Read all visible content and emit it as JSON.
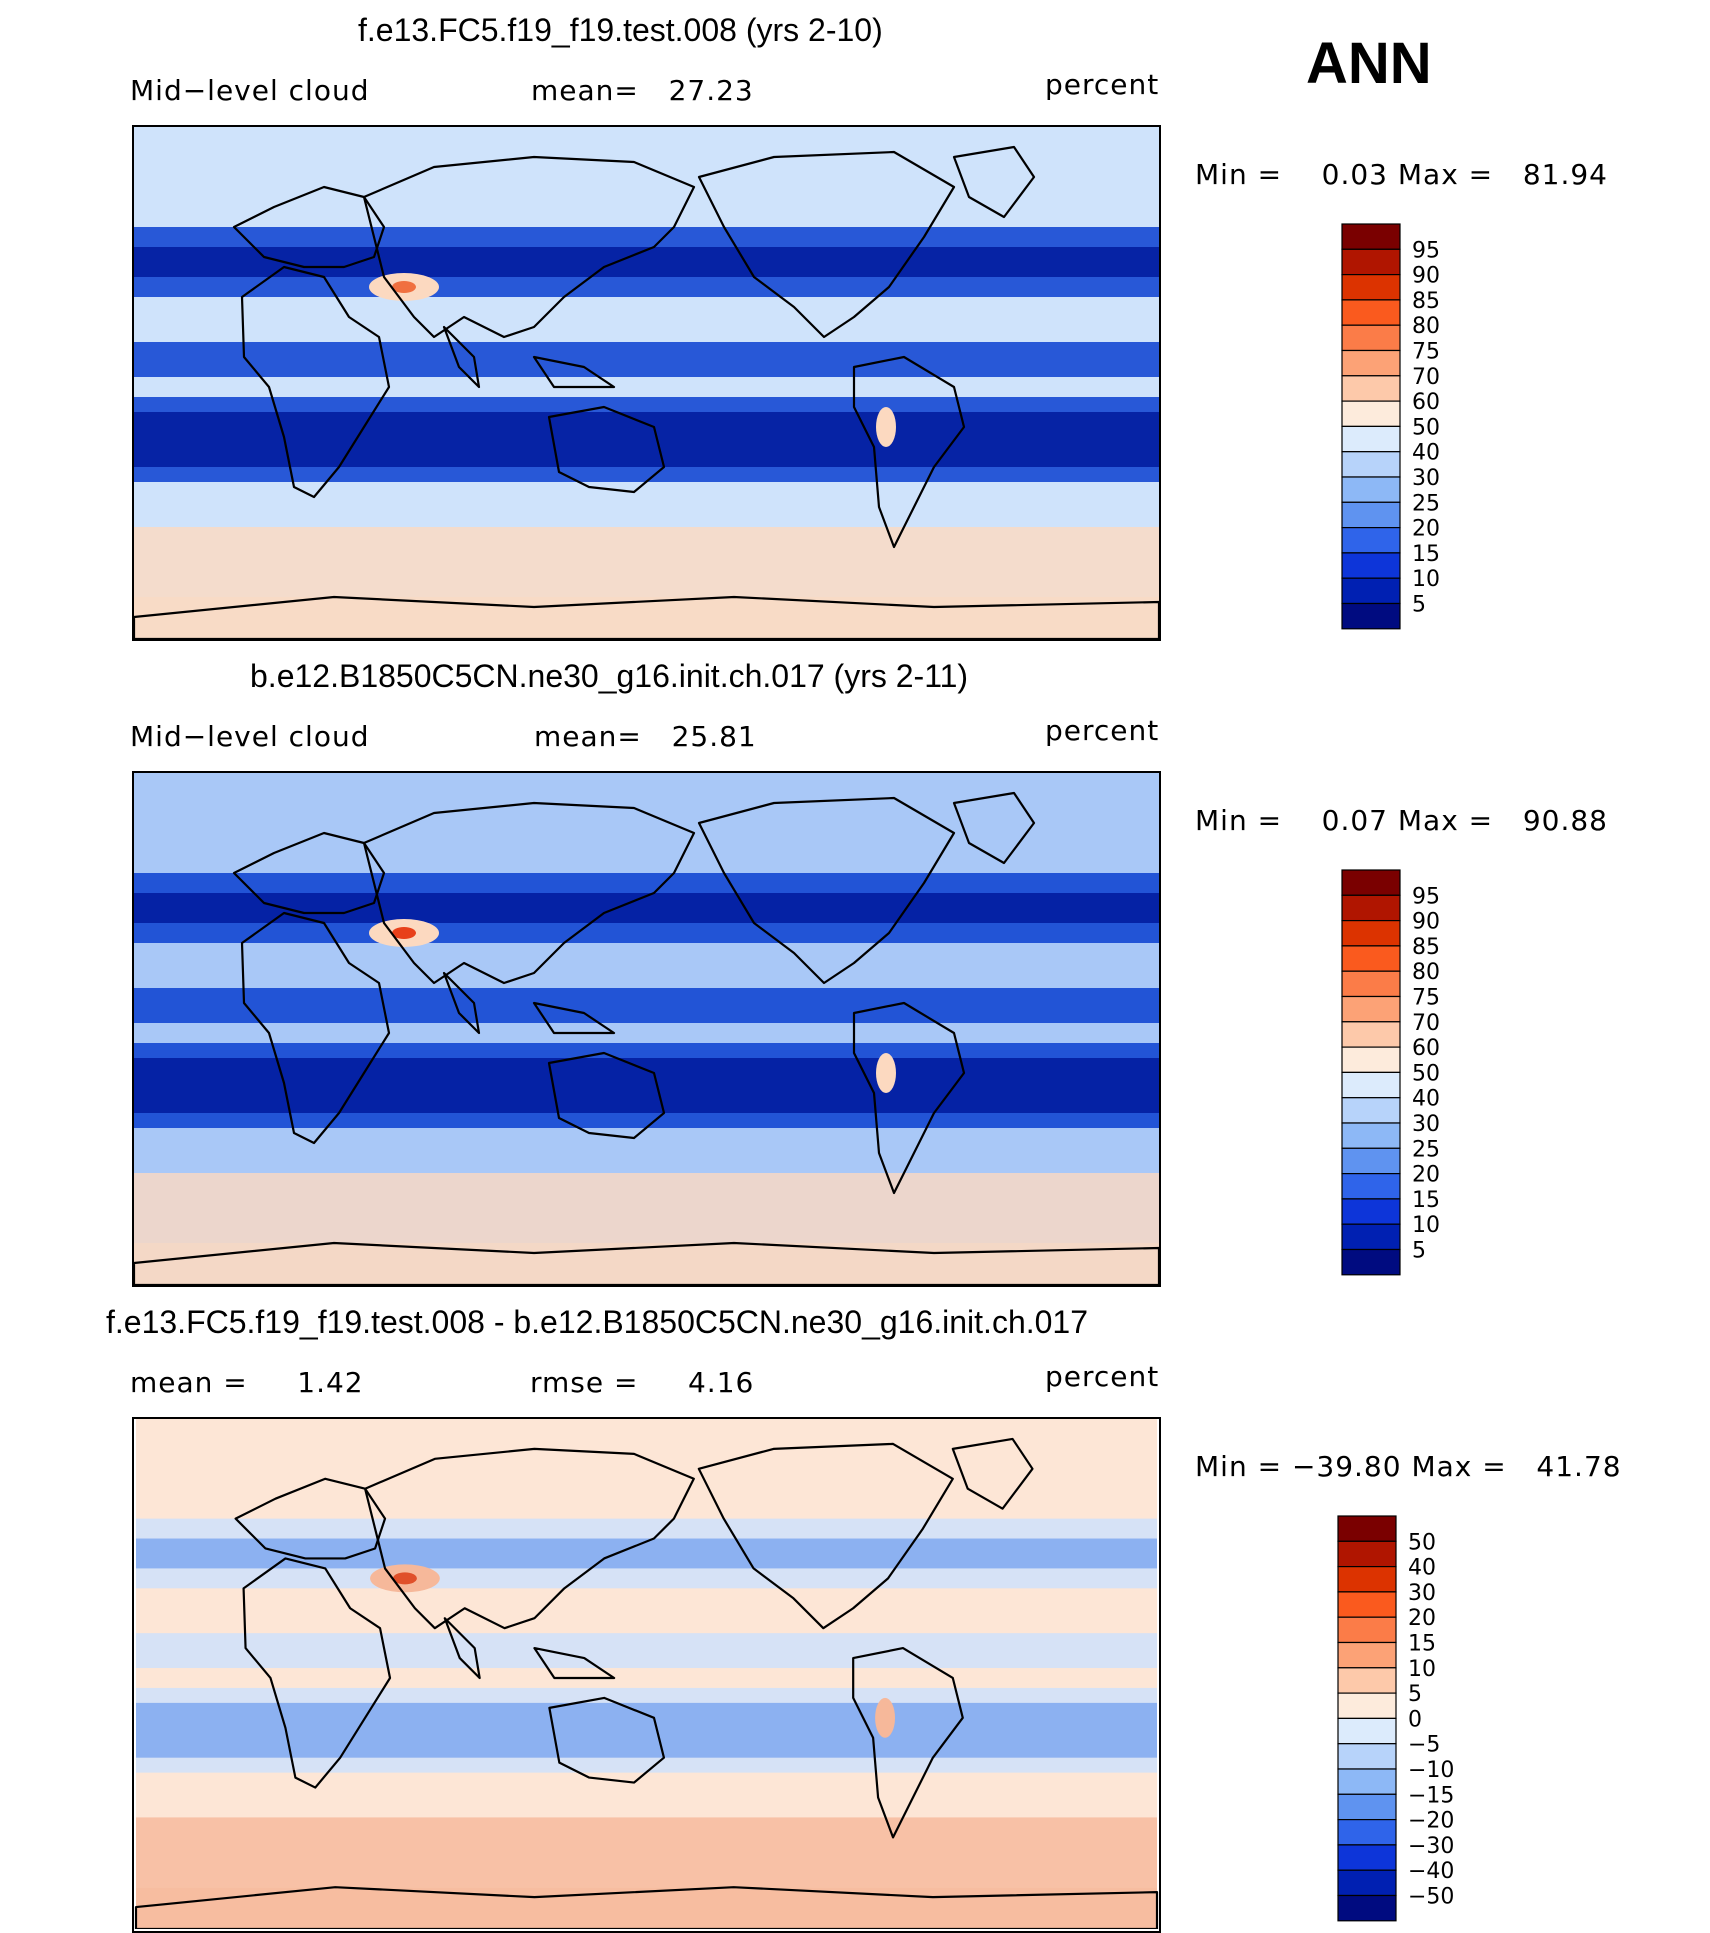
{
  "season_label": "ANN",
  "panels": [
    {
      "title": "f.e13.FC5.f19_f19.test.008 (yrs 2-10)",
      "left_label": "Mid−level cloud",
      "center_label": "mean=   27.23",
      "units": "percent",
      "minmax": "Min =    0.03 Max =   81.94",
      "colors": {
        "fill": "#cfe3fb",
        "band_dark": "#0a3fd0",
        "band_deep": "#001a9c",
        "warm": "#fcd9c0",
        "hot": "#f07040"
      }
    },
    {
      "title": "b.e12.B1850C5CN.ne30_g16.init.ch.017 (yrs 2-11)",
      "left_label": "Mid−level cloud",
      "center_label": "mean=   25.81",
      "units": "percent",
      "minmax": "Min =    0.07 Max =   90.88",
      "colors": {
        "fill": "#a9c8f7",
        "band_dark": "#0a3fd0",
        "band_deep": "#001a9c",
        "warm": "#fcd9c0",
        "hot": "#e8401a"
      }
    },
    {
      "title": "f.e13.FC5.f19_f19.test.008 - b.e12.B1850C5CN.ne30_g16.init.ch.017",
      "left_label": "mean =     1.42",
      "center_label": "rmse =     4.16",
      "units": "percent",
      "minmax": "Min = −39.80 Max =   41.78",
      "colors": {
        "fill": "#fde6d6",
        "band_dark": "#cfe0fb",
        "band_deep": "#7fa8f0",
        "warm": "#f6b89a",
        "hot": "#e0502a"
      }
    }
  ],
  "chart_data": {
    "type": "heatmap",
    "variable": "Mid-level cloud",
    "units": "percent",
    "season": "ANN",
    "maps": [
      {
        "case": "f.e13.FC5.f19_f19.test.008 (yrs 2-10)",
        "mean": 27.23,
        "min": 0.03,
        "max": 81.94
      },
      {
        "case": "b.e12.B1850C5CN.ne30_g16.init.ch.017 (yrs 2-11)",
        "mean": 25.81,
        "min": 0.07,
        "max": 90.88
      },
      {
        "case": "f.e13.FC5.f19_f19.test.008 - b.e12.B1850C5CN.ne30_g16.init.ch.017",
        "mean": 1.42,
        "rmse": 4.16,
        "min": -39.8,
        "max": 41.78
      }
    ],
    "colorbars": [
      {
        "levels": [
          "95",
          "90",
          "85",
          "80",
          "75",
          "70",
          "60",
          "50",
          "40",
          "30",
          "25",
          "20",
          "15",
          "10",
          "5"
        ],
        "colors": [
          "#7a0000",
          "#b01500",
          "#dc3300",
          "#fa5a1e",
          "#fb7c48",
          "#fca276",
          "#fdc9aa",
          "#fdebdc",
          "#dcebfc",
          "#b7d3fa",
          "#8db8f6",
          "#5f93f0",
          "#2f64ea",
          "#0d35d9",
          "#0020b2",
          "#000b80"
        ]
      },
      {
        "levels": [
          "95",
          "90",
          "85",
          "80",
          "75",
          "70",
          "60",
          "50",
          "40",
          "30",
          "25",
          "20",
          "15",
          "10",
          "5"
        ],
        "colors": [
          "#7a0000",
          "#b01500",
          "#dc3300",
          "#fa5a1e",
          "#fb7c48",
          "#fca276",
          "#fdc9aa",
          "#fdebdc",
          "#dcebfc",
          "#b7d3fa",
          "#8db8f6",
          "#5f93f0",
          "#2f64ea",
          "#0d35d9",
          "#0020b2",
          "#000b80"
        ]
      },
      {
        "levels": [
          "50",
          "40",
          "30",
          "20",
          "15",
          "10",
          "5",
          "0",
          "−5",
          "−10",
          "−15",
          "−20",
          "−30",
          "−40",
          "−50"
        ],
        "colors": [
          "#7a0000",
          "#b01500",
          "#dc3300",
          "#fa5a1e",
          "#fb7c48",
          "#fca276",
          "#fdc9aa",
          "#fdebdc",
          "#dcebfc",
          "#b7d3fa",
          "#8db8f6",
          "#5f93f0",
          "#2f64ea",
          "#0d35d9",
          "#0020b2",
          "#000b80"
        ]
      }
    ]
  }
}
